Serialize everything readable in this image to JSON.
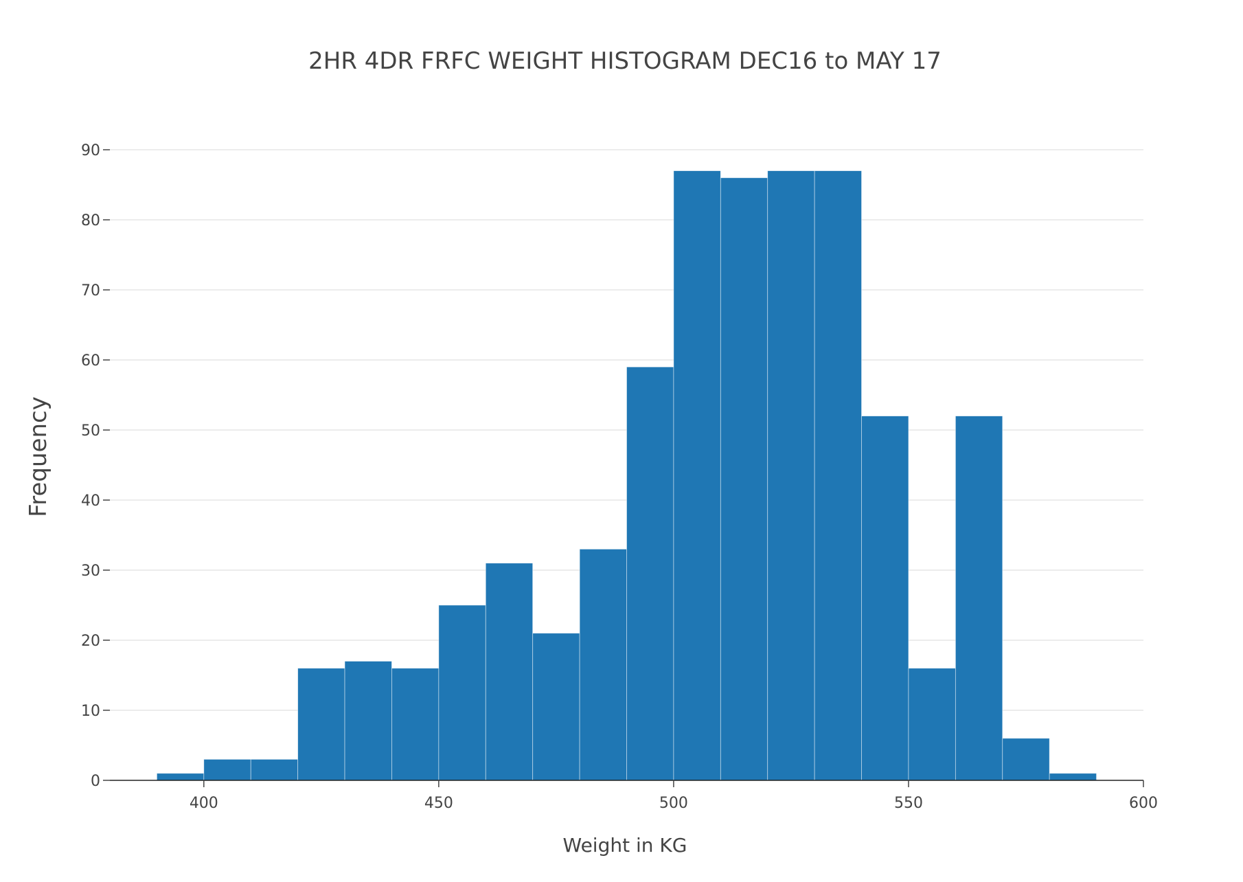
{
  "colors": {
    "bar_fill": "#1f77b4",
    "text": "#444444",
    "grid": "#e6e6e6"
  },
  "chart_data": {
    "type": "bar",
    "title": "2HR 4DR FRFC WEIGHT HISTOGRAM DEC16 to MAY 17",
    "xlabel": "Weight in KG",
    "ylabel": "Frequency",
    "xlim": [
      380,
      600
    ],
    "ylim": [
      0,
      90
    ],
    "grid": true,
    "bin_width": 10,
    "bins": [
      {
        "start": 390,
        "end": 400,
        "count": 1
      },
      {
        "start": 400,
        "end": 410,
        "count": 3
      },
      {
        "start": 410,
        "end": 420,
        "count": 3
      },
      {
        "start": 420,
        "end": 430,
        "count": 16
      },
      {
        "start": 430,
        "end": 440,
        "count": 17
      },
      {
        "start": 440,
        "end": 450,
        "count": 16
      },
      {
        "start": 450,
        "end": 460,
        "count": 25
      },
      {
        "start": 460,
        "end": 470,
        "count": 31
      },
      {
        "start": 470,
        "end": 480,
        "count": 21
      },
      {
        "start": 480,
        "end": 490,
        "count": 33
      },
      {
        "start": 490,
        "end": 500,
        "count": 59
      },
      {
        "start": 500,
        "end": 510,
        "count": 87
      },
      {
        "start": 510,
        "end": 520,
        "count": 86
      },
      {
        "start": 520,
        "end": 530,
        "count": 87
      },
      {
        "start": 530,
        "end": 540,
        "count": 87
      },
      {
        "start": 540,
        "end": 550,
        "count": 52
      },
      {
        "start": 550,
        "end": 560,
        "count": 16
      },
      {
        "start": 560,
        "end": 570,
        "count": 52
      },
      {
        "start": 570,
        "end": 580,
        "count": 6
      },
      {
        "start": 580,
        "end": 590,
        "count": 1
      }
    ],
    "x_ticks": [
      {
        "value": 400,
        "label": "400"
      },
      {
        "value": 450,
        "label": "450"
      },
      {
        "value": 500,
        "label": "500"
      },
      {
        "value": 550,
        "label": "550"
      },
      {
        "value": 600,
        "label": "600"
      }
    ],
    "y_ticks": [
      {
        "value": 0,
        "label": "0"
      },
      {
        "value": 10,
        "label": "10"
      },
      {
        "value": 20,
        "label": "20"
      },
      {
        "value": 30,
        "label": "30"
      },
      {
        "value": 40,
        "label": "40"
      },
      {
        "value": 50,
        "label": "50"
      },
      {
        "value": 60,
        "label": "60"
      },
      {
        "value": 70,
        "label": "70"
      },
      {
        "value": 80,
        "label": "80"
      },
      {
        "value": 90,
        "label": "90"
      }
    ]
  }
}
